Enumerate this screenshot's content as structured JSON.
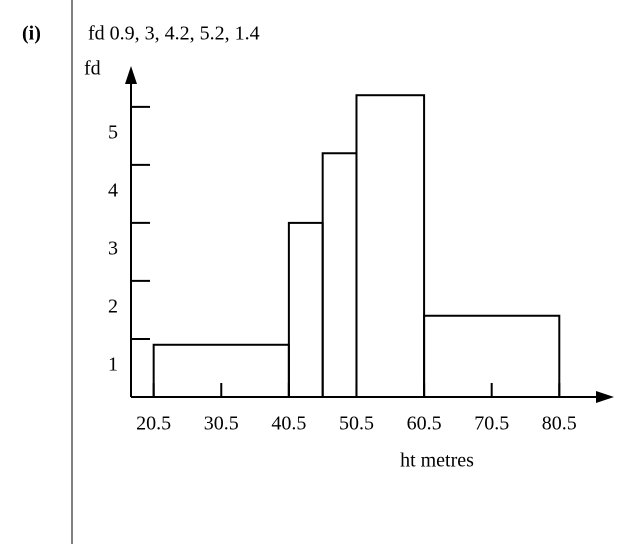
{
  "part_label": "(i)",
  "chart_data": {
    "type": "histogram",
    "title": "fd 0.9, 3, 4.2, 5.2, 1.4",
    "ylabel": "fd",
    "xlabel": "ht metres",
    "bins": [
      20.5,
      40.5,
      45.5,
      50.5,
      60.5,
      80.5
    ],
    "values": [
      0.9,
      3,
      4.2,
      5.2,
      1.4
    ],
    "color": "#000000",
    "xlim": [
      17,
      88
    ],
    "xticks": [
      20.5,
      30.5,
      40.5,
      50.5,
      60.5,
      70.5,
      80.5
    ],
    "ylim": [
      0,
      5.6
    ],
    "yticks": [
      1,
      2,
      3,
      4,
      5
    ]
  }
}
